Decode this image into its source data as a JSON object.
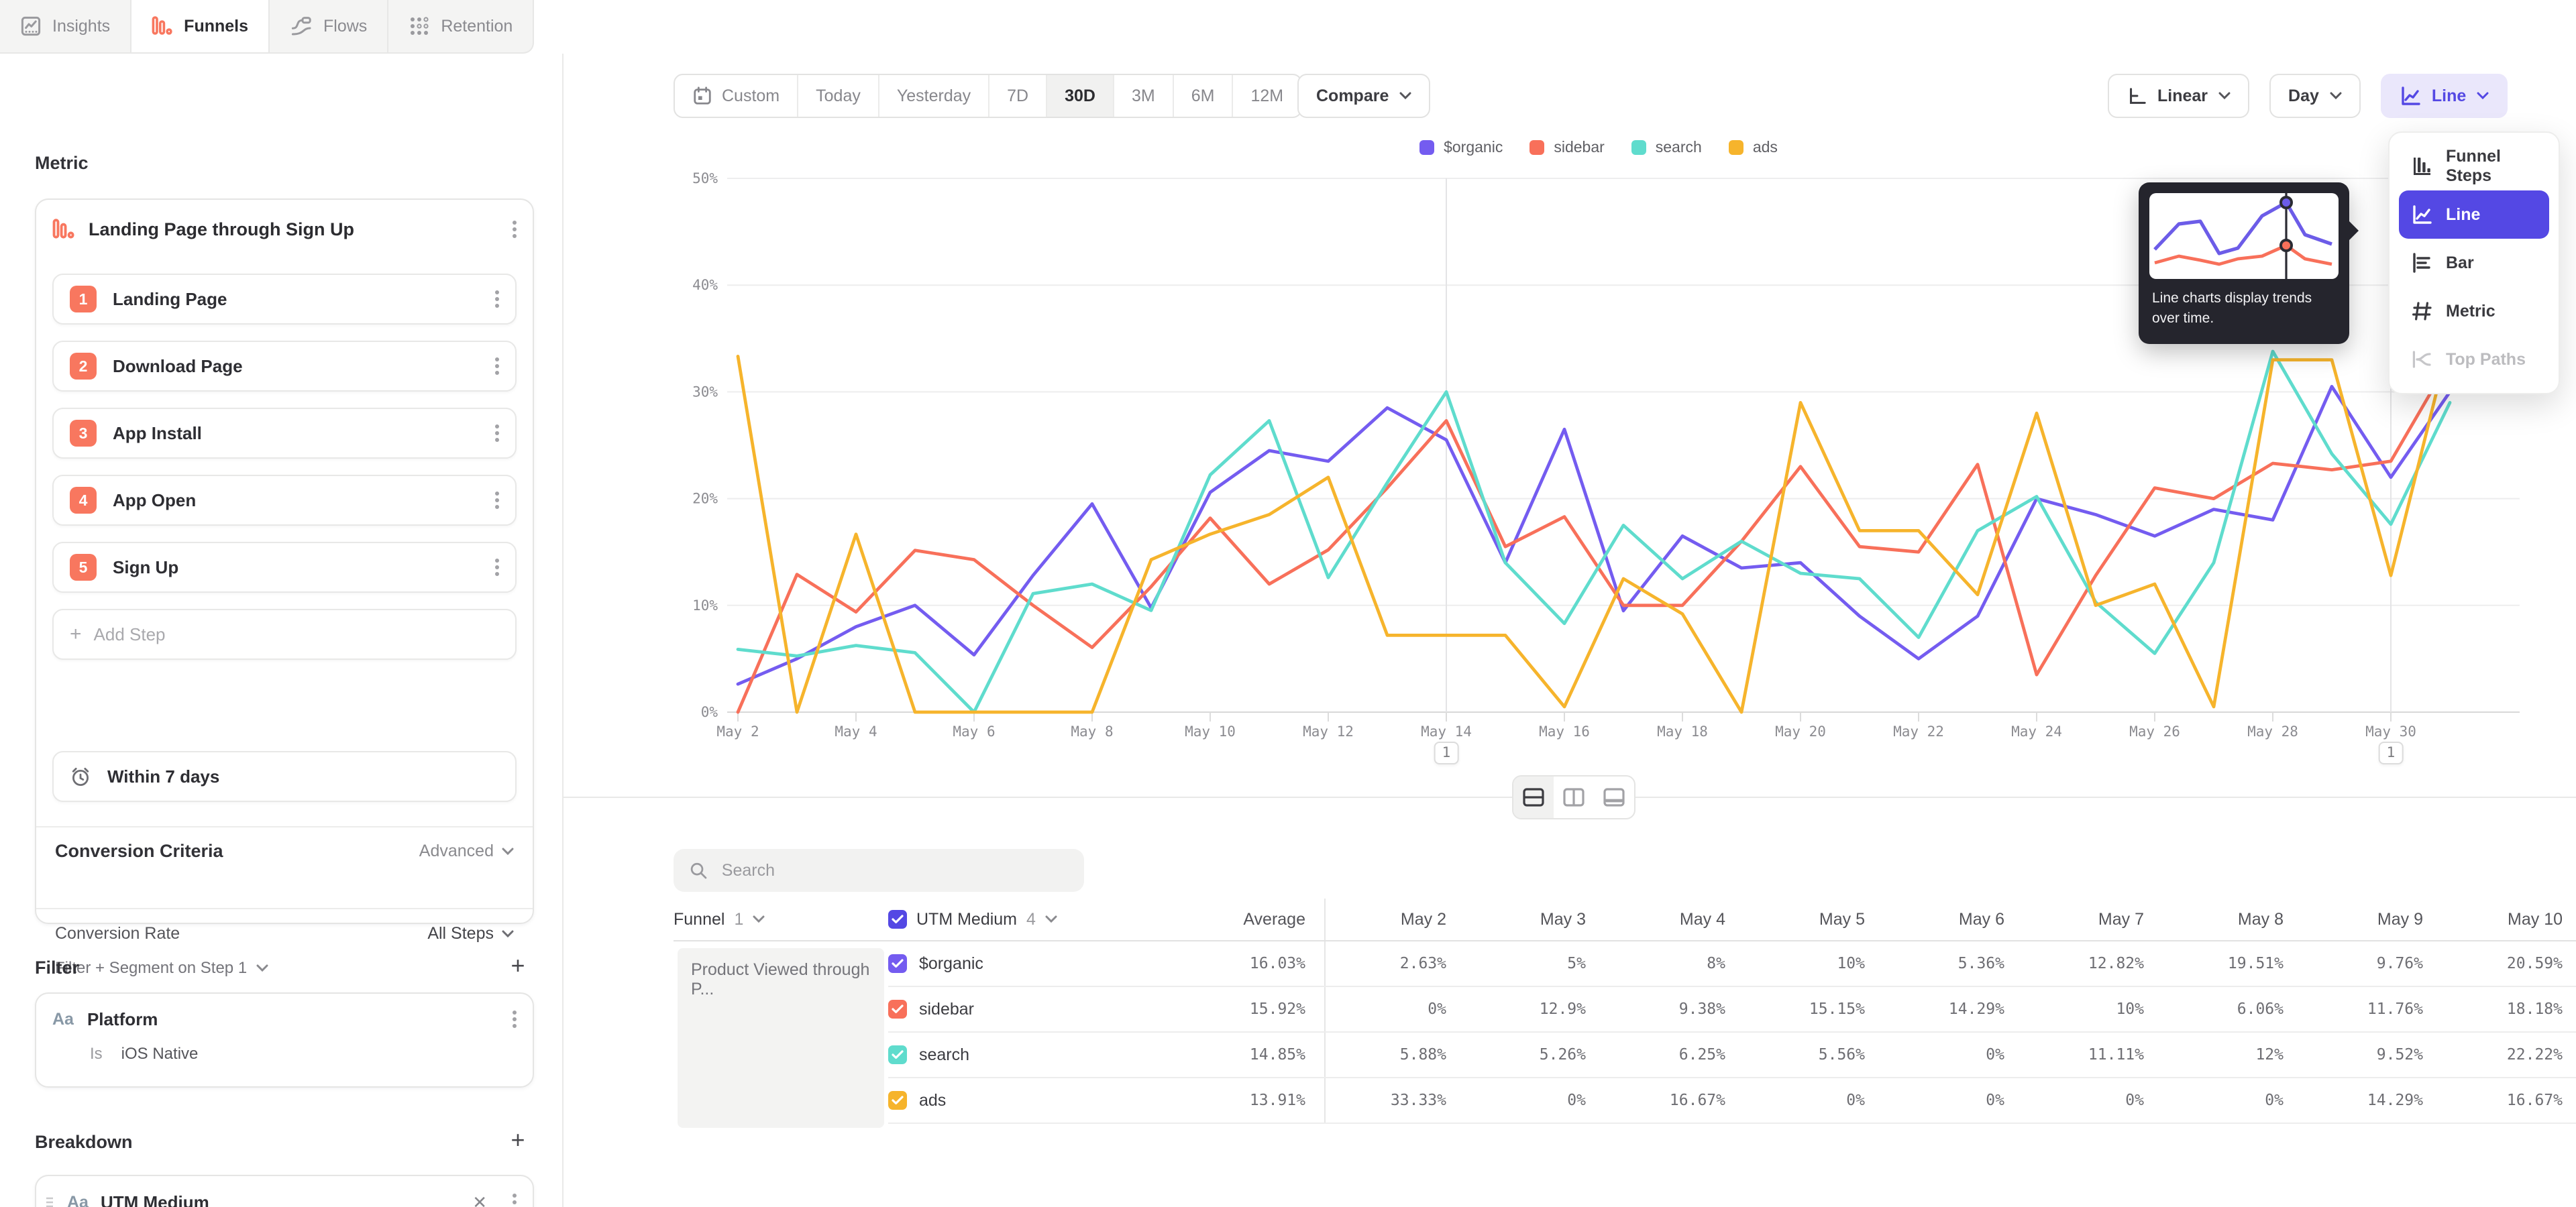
{
  "colors": {
    "accent": "#5448e4",
    "accent_bg": "#eae7fb",
    "orange": "#f8775f",
    "purple": "#745cf0",
    "red": "#f8705a",
    "teal": "#5fdccd",
    "amber": "#f6b42c"
  },
  "tabs": [
    {
      "label": "Insights",
      "icon": "insights",
      "active": false
    },
    {
      "label": "Funnels",
      "icon": "funnels",
      "active": true
    },
    {
      "label": "Flows",
      "icon": "flows",
      "active": false
    },
    {
      "label": "Retention",
      "icon": "retention",
      "active": false
    }
  ],
  "sidebar": {
    "metric_label": "Metric",
    "funnel": {
      "title": "Landing Page through Sign Up",
      "steps": [
        "Landing Page",
        "Download Page",
        "App Install",
        "App Open",
        "Sign Up"
      ],
      "add_step": "Add Step",
      "conversion_criteria": "Conversion Criteria",
      "advanced": "Advanced",
      "window": "Within 7 days",
      "conversion_rate": "Conversion Rate",
      "all_steps": "All Steps",
      "filter_segment": "Filter + Segment on Step 1"
    },
    "filter": {
      "heading": "Filter",
      "property": "Platform",
      "operator": "Is",
      "value": "iOS Native",
      "type_icon": "Aa"
    },
    "breakdown": {
      "heading": "Breakdown",
      "property": "UTM Medium",
      "type_icon": "Aa"
    }
  },
  "toolbar": {
    "date_presets": [
      "Custom",
      "Today",
      "Yesterday",
      "7D",
      "30D",
      "3M",
      "6M",
      "12M"
    ],
    "active_preset": "30D",
    "compare_label": "Compare",
    "scale_label": "Linear",
    "granularity_label": "Day",
    "chart_type_label": "Line"
  },
  "chart_menu": {
    "items": [
      {
        "label": "Funnel Steps",
        "icon": "funnel-steps",
        "state": "normal"
      },
      {
        "label": "Line",
        "icon": "line",
        "state": "selected"
      },
      {
        "label": "Bar",
        "icon": "bar",
        "state": "normal"
      },
      {
        "label": "Metric",
        "icon": "metric",
        "state": "normal"
      },
      {
        "label": "Top Paths",
        "icon": "top-paths",
        "state": "disabled"
      }
    ],
    "tooltip_text": "Line charts display trends over time."
  },
  "chart_data": {
    "type": "line",
    "x": [
      "May 2",
      "May 3",
      "May 4",
      "May 5",
      "May 6",
      "May 7",
      "May 8",
      "May 9",
      "May 10",
      "May 11",
      "May 12",
      "May 13",
      "May 14",
      "May 15",
      "May 16",
      "May 17",
      "May 18",
      "May 19",
      "May 20",
      "May 21",
      "May 22",
      "May 23",
      "May 24",
      "May 25",
      "May 26",
      "May 27",
      "May 28",
      "May 29",
      "May 30",
      "May 31"
    ],
    "series": [
      {
        "name": "$organic",
        "color": "#745cf0",
        "values": [
          2.63,
          5,
          8,
          10,
          5.36,
          12.82,
          19.51,
          9.76,
          20.59,
          24.5,
          23.5,
          28.5,
          25.5,
          14,
          26.5,
          9.5,
          16.5,
          13.5,
          14,
          9,
          5,
          9,
          20,
          18.5,
          16.5,
          19,
          18,
          30.5,
          22,
          30
        ]
      },
      {
        "name": "sidebar",
        "color": "#f8705a",
        "values": [
          0,
          12.9,
          9.38,
          15.15,
          14.29,
          10,
          6.06,
          11.76,
          18.18,
          12,
          15.2,
          21,
          27.3,
          15.5,
          18.3,
          10,
          10,
          16,
          23,
          15.5,
          15,
          23.2,
          3.5,
          12.8,
          21,
          20,
          23.3,
          22.7,
          23.5,
          33
        ]
      },
      {
        "name": "search",
        "color": "#5fdccd",
        "values": [
          5.88,
          5.26,
          6.25,
          5.56,
          0,
          11.11,
          12,
          9.52,
          22.22,
          27.3,
          12.6,
          21.5,
          30,
          14,
          8.3,
          17.5,
          12.5,
          16,
          13,
          12.5,
          7,
          17,
          20.2,
          10.3,
          5.5,
          14,
          33.8,
          24.2,
          17.6,
          29
        ]
      },
      {
        "name": "ads",
        "color": "#f6b42c",
        "values": [
          33.33,
          0,
          16.67,
          0,
          0,
          0,
          0,
          14.29,
          16.67,
          18.5,
          22,
          7.2,
          7.2,
          7.2,
          0.5,
          12.5,
          9.2,
          0,
          29,
          17,
          17,
          11,
          28,
          10,
          12,
          0.5,
          33,
          33,
          12.8,
          35
        ]
      }
    ],
    "ylim": [
      0,
      50
    ],
    "ytick_step": 10,
    "ytick_suffix": "%",
    "xtick_every": 2,
    "grid": true,
    "legend_position": "top",
    "annotations": [
      {
        "x": "May 14",
        "label": "1"
      },
      {
        "x": "May 30",
        "label": "1"
      }
    ]
  },
  "table": {
    "search_placeholder": "Search",
    "funnel_label": "Funnel",
    "funnel_count": "1",
    "breakdown_label": "UTM Medium",
    "breakdown_count": "4",
    "average_label": "Average",
    "date_columns": [
      "May 2",
      "May 3",
      "May 4",
      "May 5",
      "May 6",
      "May 7",
      "May 8",
      "May 9",
      "May 10"
    ],
    "funnel_cell": "Product Viewed through P...",
    "rows": [
      {
        "name": "$organic",
        "color": "#745cf0",
        "average": "16.03%",
        "values": [
          "2.63%",
          "5%",
          "8%",
          "10%",
          "5.36%",
          "12.82%",
          "19.51%",
          "9.76%",
          "20.59%"
        ]
      },
      {
        "name": "sidebar",
        "color": "#f8705a",
        "average": "15.92%",
        "values": [
          "0%",
          "12.9%",
          "9.38%",
          "15.15%",
          "14.29%",
          "10%",
          "6.06%",
          "11.76%",
          "18.18%"
        ]
      },
      {
        "name": "search",
        "color": "#5fdccd",
        "average": "14.85%",
        "values": [
          "5.88%",
          "5.26%",
          "6.25%",
          "5.56%",
          "0%",
          "11.11%",
          "12%",
          "9.52%",
          "22.22%"
        ]
      },
      {
        "name": "ads",
        "color": "#f6b42c",
        "average": "13.91%",
        "values": [
          "33.33%",
          "0%",
          "16.67%",
          "0%",
          "0%",
          "0%",
          "0%",
          "14.29%",
          "16.67%"
        ]
      }
    ]
  }
}
